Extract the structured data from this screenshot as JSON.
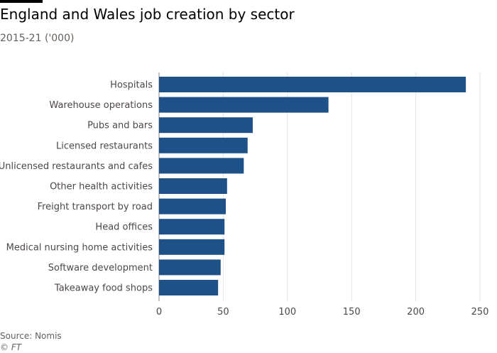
{
  "header": {
    "title": "England and Wales job creation by sector",
    "subtitle": "2015-21 ('000)"
  },
  "footer": {
    "source": "Source: Nomis",
    "credit": "© FT"
  },
  "colors": {
    "bar": "#1f5189",
    "grid": "#e6e2df",
    "axis": "#8f8a87",
    "label": "#4d4845"
  },
  "chart_data": {
    "type": "bar",
    "orientation": "horizontal",
    "categories": [
      "Hospitals",
      "Warehouse operations",
      "Pubs and bars",
      "Licensed restaurants",
      "Unlicensed restaurants and cafes",
      "Other health activities",
      "Freight transport by road",
      "Head offices",
      "Medical nursing home activities",
      "Software development",
      "Takeaway food shops"
    ],
    "values": [
      239,
      132,
      73,
      69,
      66,
      53,
      52,
      51,
      51,
      48,
      46
    ],
    "xlim": [
      0,
      250
    ],
    "xticks": [
      0,
      50,
      100,
      150,
      200,
      250
    ],
    "grid": true
  }
}
